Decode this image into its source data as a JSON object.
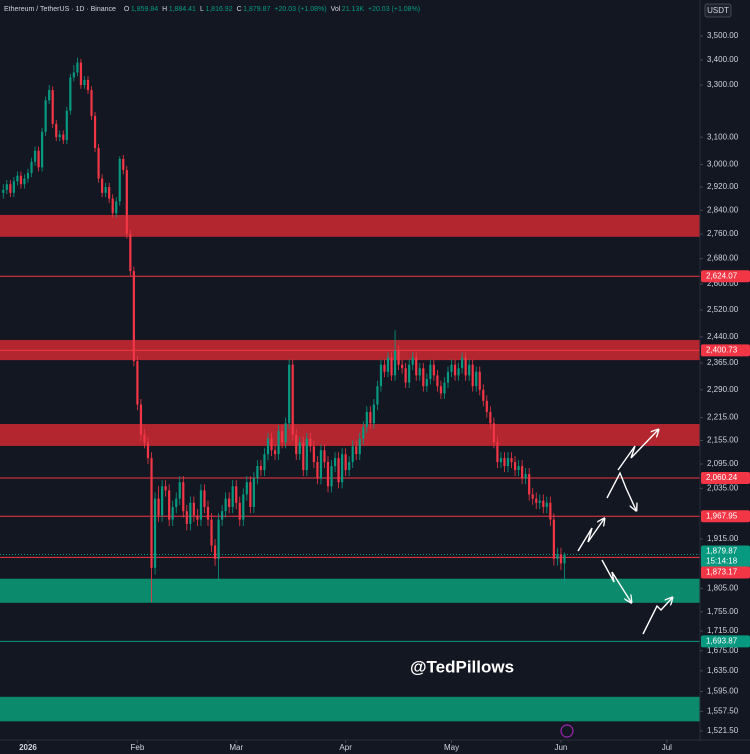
{
  "chart_data": {
    "type": "candlestick",
    "currency": "USDT",
    "symbol": "Ethereum / TetherUS · 1D · Binance",
    "header_items": [
      {
        "label": "O",
        "value": "1,859.84"
      },
      {
        "label": "H",
        "value": "1,884.41"
      },
      {
        "label": "L",
        "value": "1,816.92"
      },
      {
        "label": "C",
        "value": "1,879.87"
      },
      {
        "label": "",
        "value": "+20.03 (+1.08%)"
      },
      {
        "label": "Vol",
        "value": "21.13K"
      },
      {
        "label": "",
        "value": "+20.03 (+1.08%)"
      }
    ],
    "watermark": "@TedPillows",
    "log_scale": true,
    "grid": false,
    "up_color": "#089981",
    "down_color": "#f23645",
    "xlim": [
      -7.93,
      190.4
    ],
    "xticks": [
      {
        "value": 0,
        "label": "2026"
      },
      {
        "value": 31,
        "label": "Feb"
      },
      {
        "value": 59,
        "label": "Mar"
      },
      {
        "value": 90,
        "label": "Apr"
      },
      {
        "value": 120,
        "label": "May"
      },
      {
        "value": 151,
        "label": "Jun"
      },
      {
        "value": 181,
        "label": "Jul"
      }
    ],
    "ylim": [
      1505,
      3654
    ],
    "yticks": [
      {
        "value": 3500,
        "label": "3,500.00"
      },
      {
        "value": 3400,
        "label": "3,400.00"
      },
      {
        "value": 3300,
        "label": "3,300.00"
      },
      {
        "value": 3100,
        "label": "3,100.00"
      },
      {
        "value": 3000,
        "label": "3,000.00"
      },
      {
        "value": 2920,
        "label": "2,920.00"
      },
      {
        "value": 2840,
        "label": "2,840.00"
      },
      {
        "value": 2760,
        "label": "2,760.00"
      },
      {
        "value": 2680,
        "label": "2,680.00"
      },
      {
        "value": 2600,
        "label": "2,600.00"
      },
      {
        "value": 2520,
        "label": "2,520.00"
      },
      {
        "value": 2440,
        "label": "2,440.00"
      },
      {
        "value": 2365,
        "label": "2,365.00"
      },
      {
        "value": 2290,
        "label": "2,290.00"
      },
      {
        "value": 2215,
        "label": "2,215.00"
      },
      {
        "value": 2155,
        "label": "2,155.00"
      },
      {
        "value": 2095,
        "label": "2,095.00"
      },
      {
        "value": 2035,
        "label": "2,035.00"
      },
      {
        "value": 1915,
        "label": "1,915.00"
      },
      {
        "value": 1805,
        "label": "1,805.00"
      },
      {
        "value": 1755,
        "label": "1,755.00"
      },
      {
        "value": 1715,
        "label": "1,715.00"
      },
      {
        "value": 1675,
        "label": "1,675.00"
      },
      {
        "value": 1635,
        "label": "1,635.00"
      },
      {
        "value": 1595,
        "label": "1,595.00"
      },
      {
        "value": 1557.5,
        "label": "1,557.50"
      },
      {
        "value": 1521.5,
        "label": "1,521.50"
      }
    ],
    "zones": [
      {
        "from": 2751,
        "to": 2824,
        "color": "#b3262f"
      },
      {
        "from": 2373,
        "to": 2431,
        "color": "#b3262f"
      },
      {
        "from": 2141,
        "to": 2198,
        "color": "#b3262f"
      },
      {
        "from": 1774,
        "to": 1826,
        "color": "#0b8a6c"
      },
      {
        "from": 1539,
        "to": 1585,
        "color": "#0b8a6c"
      }
    ],
    "levels": [
      {
        "value": 2624.07,
        "label": "2,624.07",
        "color": "#f23645"
      },
      {
        "value": 2400.73,
        "label": "2,400.73",
        "color": "#f23645"
      },
      {
        "value": 2060.24,
        "label": "2,060.24",
        "color": "#f23645"
      },
      {
        "value": 1967.95,
        "label": "1,967.95",
        "color": "#f23645"
      },
      {
        "value": 1693.87,
        "label": "1,693.87",
        "color": "#089981"
      }
    ],
    "last_price": {
      "value": 1879.87,
      "label": "1,879.87",
      "countdown": "15:14:18",
      "color": "#089981"
    },
    "prev_level": {
      "value": 1873.17,
      "label": "1,873.17",
      "color": "#f23645"
    },
    "candles": {
      "x": [
        -7,
        -6,
        -5,
        -4,
        -3,
        -2,
        -1,
        0,
        1,
        2,
        3,
        4,
        5,
        6,
        7,
        8,
        9,
        10,
        11,
        12,
        13,
        14,
        15,
        16,
        17,
        18,
        19,
        20,
        21,
        22,
        23,
        24,
        25,
        26,
        27,
        28,
        29,
        30,
        31,
        32,
        33,
        34,
        35,
        36,
        37,
        38,
        39,
        40,
        41,
        42,
        43,
        44,
        45,
        46,
        47,
        48,
        49,
        50,
        51,
        52,
        53,
        54,
        55,
        56,
        57,
        58,
        59,
        60,
        61,
        62,
        63,
        64,
        65,
        66,
        67,
        68,
        69,
        70,
        71,
        72,
        73,
        74,
        75,
        76,
        77,
        78,
        79,
        80,
        81,
        82,
        83,
        84,
        85,
        86,
        87,
        88,
        89,
        90,
        91,
        92,
        93,
        94,
        95,
        96,
        97,
        98,
        99,
        100,
        101,
        102,
        103,
        104,
        105,
        106,
        107,
        108,
        109,
        110,
        111,
        112,
        113,
        114,
        115,
        116,
        117,
        118,
        119,
        120,
        121,
        122,
        123,
        124,
        125,
        126,
        127,
        128,
        129,
        130,
        131,
        132,
        133,
        134,
        135,
        136,
        137,
        138,
        139,
        140,
        141,
        142,
        143,
        144,
        145,
        146,
        147,
        148,
        149,
        150,
        151,
        152
      ],
      "open": [
        2900,
        2910,
        2930,
        2900,
        2940,
        2960,
        2930,
        2950,
        2970,
        3010,
        3050,
        2990,
        3120,
        3240,
        3280,
        3150,
        3100,
        3110,
        3090,
        3200,
        3330,
        3350,
        3390,
        3300,
        3320,
        3280,
        3180,
        3060,
        2950,
        2900,
        2920,
        2880,
        2830,
        2870,
        3020,
        2980,
        2760,
        2640,
        2370,
        2250,
        2170,
        2150,
        2110,
        1850,
        2010,
        1970,
        2040,
        2030,
        1960,
        1990,
        2010,
        2050,
        1980,
        1950,
        2000,
        1970,
        1960,
        2030,
        1990,
        1960,
        1900,
        1870,
        1960,
        1980,
        2010,
        1990,
        2040,
        2000,
        1960,
        2020,
        2050,
        1990,
        2060,
        2090,
        2080,
        2120,
        2160,
        2130,
        2120,
        2180,
        2150,
        2200,
        2360,
        2170,
        2120,
        2150,
        2080,
        2160,
        2140,
        2100,
        2060,
        2130,
        2100,
        2040,
        2090,
        2110,
        2050,
        2120,
        2080,
        2100,
        2140,
        2120,
        2160,
        2190,
        2230,
        2200,
        2250,
        2300,
        2360,
        2340,
        2380,
        2330,
        2400,
        2360,
        2350,
        2310,
        2360,
        2380,
        2330,
        2350,
        2300,
        2320,
        2360,
        2330,
        2300,
        2280,
        2310,
        2340,
        2360,
        2330,
        2350,
        2380,
        2330,
        2360,
        2300,
        2340,
        2290,
        2260,
        2230,
        2200,
        2150,
        2100,
        2110,
        2090,
        2110,
        2100,
        2080,
        2090,
        2060,
        2070,
        2020,
        2010,
        2000,
        2005,
        1990,
        2000,
        1960,
        1870,
        1880,
        1859.84
      ],
      "high": [
        2930,
        2945,
        2945,
        2955,
        2975,
        2975,
        2965,
        2985,
        3025,
        3065,
        3065,
        3135,
        3255,
        3300,
        3295,
        3165,
        3125,
        3125,
        3215,
        3345,
        3380,
        3410,
        3405,
        3335,
        3335,
        3295,
        3195,
        3075,
        2965,
        2935,
        2935,
        2895,
        2885,
        3030,
        3035,
        2995,
        2775,
        2655,
        2385,
        2265,
        2185,
        2165,
        2125,
        2025,
        2040,
        2055,
        2055,
        2045,
        2005,
        2025,
        2065,
        2065,
        1995,
        2015,
        2015,
        1985,
        2045,
        2045,
        2005,
        1975,
        1915,
        1975,
        1995,
        2025,
        2025,
        2055,
        2055,
        2015,
        2035,
        2065,
        2065,
        2075,
        2105,
        2105,
        2135,
        2175,
        2175,
        2145,
        2195,
        2195,
        2215,
        2375,
        2375,
        2185,
        2165,
        2165,
        2175,
        2175,
        2155,
        2115,
        2145,
        2145,
        2115,
        2105,
        2125,
        2125,
        2135,
        2135,
        2115,
        2155,
        2155,
        2175,
        2205,
        2245,
        2245,
        2265,
        2315,
        2375,
        2375,
        2395,
        2395,
        2460,
        2415,
        2375,
        2365,
        2375,
        2395,
        2395,
        2365,
        2365,
        2335,
        2375,
        2375,
        2345,
        2315,
        2325,
        2355,
        2375,
        2375,
        2365,
        2395,
        2395,
        2375,
        2375,
        2355,
        2355,
        2305,
        2275,
        2245,
        2215,
        2165,
        2125,
        2125,
        2125,
        2125,
        2115,
        2105,
        2105,
        2085,
        2085,
        2035,
        2025,
        2020,
        2020,
        2015,
        2015,
        1975,
        1895,
        1895,
        1884.41
      ],
      "low": [
        2880,
        2895,
        2885,
        2885,
        2925,
        2915,
        2915,
        2935,
        2955,
        2995,
        2975,
        2975,
        3105,
        3225,
        3135,
        3085,
        3085,
        3075,
        3075,
        3185,
        3315,
        3335,
        3285,
        3285,
        3265,
        3165,
        3045,
        2935,
        2885,
        2885,
        2865,
        2815,
        2815,
        2855,
        2965,
        2745,
        2625,
        2355,
        2235,
        2155,
        2135,
        2095,
        1775,
        1835,
        1955,
        1955,
        2015,
        1945,
        1945,
        1975,
        1995,
        1965,
        1935,
        1935,
        1955,
        1945,
        1945,
        1975,
        1945,
        1885,
        1855,
        1820,
        1945,
        1965,
        1975,
        1975,
        1985,
        1945,
        1945,
        2005,
        1975,
        1975,
        2045,
        2065,
        2065,
        2105,
        2115,
        2105,
        2105,
        2135,
        2135,
        2185,
        2155,
        2105,
        2105,
        2065,
        2065,
        2125,
        2085,
        2045,
        2045,
        2085,
        2025,
        2025,
        2075,
        2035,
        2035,
        2065,
        2065,
        2085,
        2105,
        2105,
        2145,
        2175,
        2185,
        2185,
        2235,
        2285,
        2325,
        2325,
        2315,
        2315,
        2345,
        2335,
        2295,
        2295,
        2345,
        2315,
        2315,
        2285,
        2285,
        2305,
        2315,
        2285,
        2265,
        2265,
        2295,
        2325,
        2315,
        2315,
        2335,
        2315,
        2315,
        2285,
        2285,
        2275,
        2245,
        2215,
        2185,
        2135,
        2085,
        2085,
        2075,
        2075,
        2085,
        2065,
        2065,
        2045,
        2045,
        2005,
        1995,
        1985,
        1985,
        1975,
        1975,
        1945,
        1855,
        1855,
        1845,
        1816.92
      ],
      "close": [
        2910,
        2930,
        2900,
        2940,
        2960,
        2930,
        2950,
        2970,
        3010,
        3050,
        2990,
        3120,
        3240,
        3280,
        3150,
        3100,
        3110,
        3090,
        3200,
        3330,
        3350,
        3390,
        3300,
        3320,
        3280,
        3180,
        3060,
        2950,
        2900,
        2920,
        2880,
        2830,
        2870,
        3020,
        2980,
        2760,
        2640,
        2370,
        2250,
        2170,
        2150,
        2110,
        1850,
        2010,
        1970,
        2040,
        2030,
        1960,
        1990,
        2010,
        2050,
        1980,
        1950,
        2000,
        1970,
        1960,
        2030,
        1990,
        1960,
        1900,
        1870,
        1960,
        1980,
        2010,
        1990,
        2040,
        2000,
        1960,
        2020,
        2050,
        1990,
        2060,
        2090,
        2080,
        2120,
        2160,
        2130,
        2120,
        2180,
        2150,
        2200,
        2360,
        2170,
        2120,
        2150,
        2080,
        2160,
        2140,
        2100,
        2060,
        2130,
        2100,
        2040,
        2090,
        2110,
        2050,
        2120,
        2080,
        2100,
        2140,
        2120,
        2160,
        2190,
        2230,
        2200,
        2250,
        2300,
        2360,
        2340,
        2380,
        2330,
        2400,
        2360,
        2350,
        2310,
        2360,
        2380,
        2330,
        2350,
        2300,
        2320,
        2360,
        2330,
        2300,
        2280,
        2310,
        2340,
        2360,
        2330,
        2350,
        2380,
        2330,
        2360,
        2300,
        2340,
        2290,
        2260,
        2230,
        2200,
        2150,
        2100,
        2110,
        2090,
        2110,
        2100,
        2080,
        2090,
        2060,
        2070,
        2020,
        2010,
        2000,
        2005,
        1990,
        2000,
        1960,
        1870,
        1880,
        1859.84,
        1879.87
      ]
    }
  }
}
